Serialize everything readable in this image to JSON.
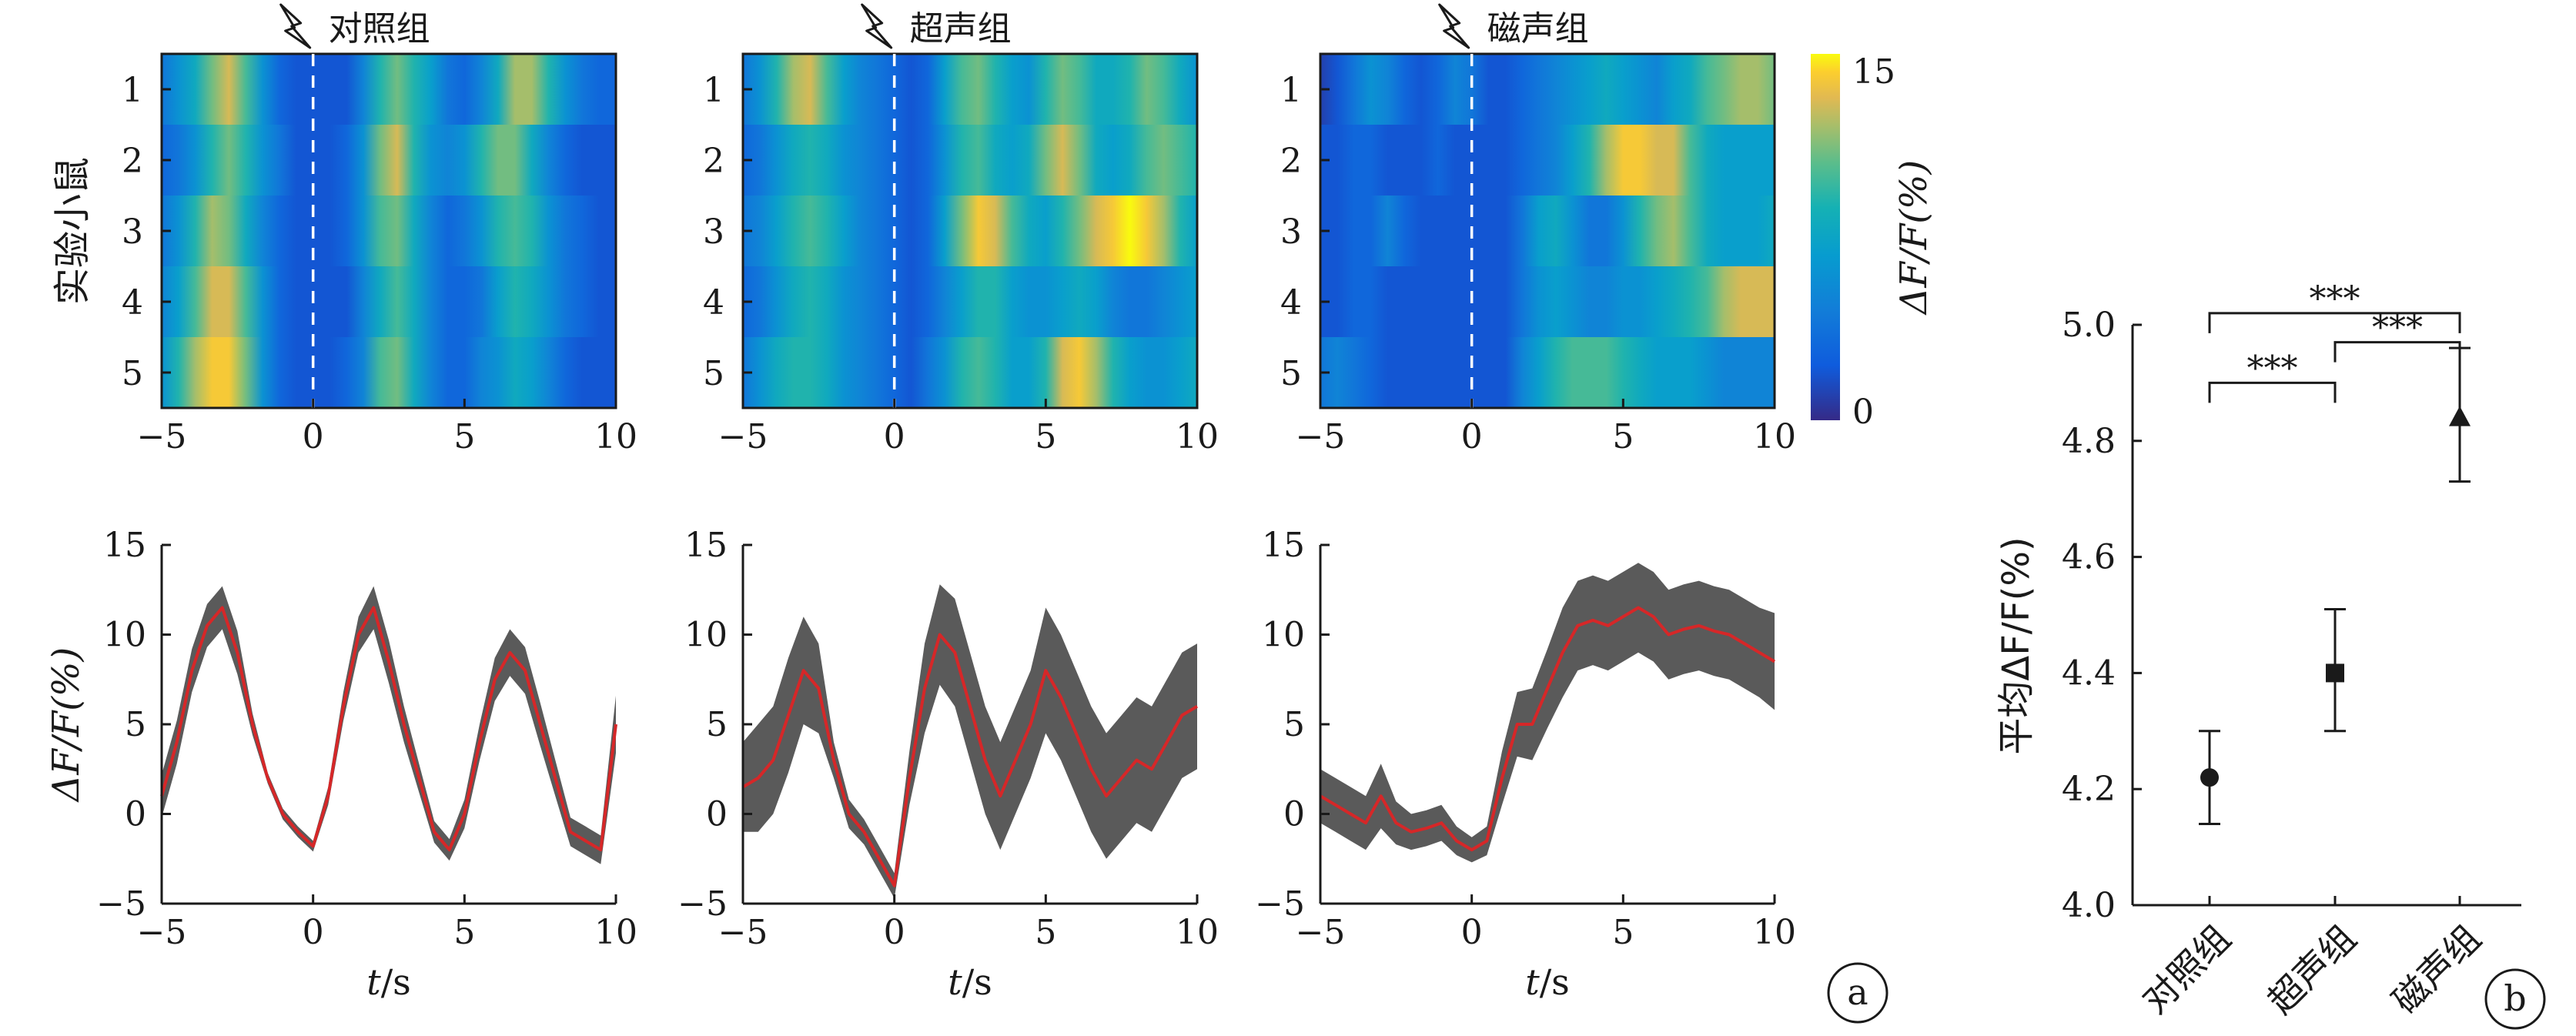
{
  "chart_data": [
    {
      "type": "heatmap",
      "panel": "a",
      "heatmaps": [
        {
          "title": "对照组",
          "rows": [
            [
              4,
              6,
              8,
              11,
              13,
              10,
              6,
              3,
              2,
              2,
              2,
              2,
              5,
              9,
              11,
              9,
              7,
              4,
              3,
              5,
              8,
              12,
              12,
              9,
              6,
              4,
              3,
              3
            ],
            [
              3,
              4,
              6,
              9,
              11,
              9,
              6,
              4,
              2,
              2,
              2,
              3,
              6,
              11,
              13,
              9,
              6,
              5,
              6,
              9,
              11,
              11,
              8,
              5,
              3,
              2,
              2,
              2
            ],
            [
              4,
              6,
              9,
              12,
              11,
              8,
              5,
              3,
              2,
              2,
              2,
              3,
              6,
              10,
              11,
              8,
              5,
              3,
              4,
              6,
              9,
              10,
              9,
              6,
              4,
              3,
              2,
              2
            ],
            [
              5,
              7,
              10,
              13,
              13,
              10,
              6,
              3,
              2,
              2,
              2,
              2,
              5,
              8,
              10,
              8,
              5,
              3,
              3,
              4,
              7,
              9,
              8,
              6,
              4,
              3,
              2,
              2
            ],
            [
              6,
              9,
              12,
              14,
              14,
              11,
              6,
              3,
              2,
              2,
              2,
              3,
              5,
              10,
              11,
              8,
              5,
              3,
              3,
              5,
              6,
              8,
              7,
              5,
              3,
              2,
              2,
              2
            ]
          ]
        },
        {
          "title": "超声组",
          "rows": [
            [
              4,
              6,
              9,
              12,
              13,
              10,
              7,
              5,
              4,
              3,
              2,
              3,
              7,
              10,
              11,
              9,
              7,
              6,
              9,
              11,
              10,
              8,
              8,
              9,
              11,
              10,
              8,
              6
            ],
            [
              3,
              4,
              6,
              8,
              9,
              8,
              6,
              5,
              4,
              3,
              2,
              3,
              6,
              9,
              10,
              8,
              7,
              8,
              11,
              13,
              11,
              8,
              7,
              8,
              10,
              11,
              10,
              9
            ],
            [
              4,
              5,
              7,
              9,
              10,
              9,
              7,
              5,
              4,
              3,
              2,
              3,
              7,
              11,
              14,
              13,
              10,
              8,
              7,
              9,
              11,
              13,
              14,
              15,
              14,
              12,
              9,
              7
            ],
            [
              3,
              4,
              6,
              8,
              9,
              8,
              6,
              5,
              4,
              3,
              2,
              3,
              5,
              7,
              9,
              9,
              7,
              6,
              6,
              7,
              8,
              7,
              5,
              4,
              4,
              5,
              6,
              7
            ],
            [
              4,
              6,
              8,
              9,
              9,
              8,
              6,
              5,
              4,
              3,
              2,
              4,
              6,
              9,
              10,
              9,
              7,
              7,
              9,
              13,
              14,
              12,
              9,
              7,
              6,
              6,
              7,
              8
            ]
          ]
        },
        {
          "title": "磁声组",
          "rows": [
            [
              1,
              2,
              4,
              6,
              5,
              3,
              2,
              3,
              5,
              4,
              2,
              2,
              3,
              4,
              5,
              6,
              7,
              8,
              7,
              6,
              5,
              7,
              8,
              10,
              11,
              12,
              12,
              11
            ],
            [
              2,
              2,
              3,
              3,
              2,
              2,
              2,
              3,
              2,
              2,
              2,
              2,
              3,
              4,
              5,
              7,
              9,
              12,
              14,
              14,
              13,
              13,
              10,
              8,
              7,
              7,
              7,
              7
            ],
            [
              2,
              2,
              3,
              3,
              5,
              3,
              2,
              2,
              2,
              2,
              2,
              2,
              4,
              7,
              8,
              6,
              4,
              4,
              6,
              9,
              11,
              12,
              10,
              8,
              7,
              7,
              7,
              8
            ],
            [
              2,
              2,
              3,
              3,
              2,
              2,
              2,
              2,
              2,
              2,
              2,
              2,
              4,
              6,
              7,
              6,
              5,
              5,
              6,
              6,
              7,
              8,
              9,
              10,
              12,
              13,
              13,
              13
            ],
            [
              4,
              5,
              4,
              3,
              2,
              2,
              2,
              2,
              2,
              2,
              2,
              2,
              5,
              7,
              9,
              10,
              10,
              10,
              9,
              8,
              7,
              7,
              7,
              6,
              5,
              5,
              5,
              5
            ]
          ]
        }
      ],
      "ylabel": "实验小鼠",
      "row_labels": [
        "1",
        "2",
        "3",
        "4",
        "5"
      ],
      "x_ticks": [
        "−5",
        "0",
        "5",
        "10"
      ],
      "xlim": [
        -5,
        10
      ],
      "colorbar": {
        "label": "ΔF/F(%)",
        "min_label": "0",
        "max_label": "15",
        "vmin": 0,
        "vmax": 15
      }
    },
    {
      "type": "line",
      "panel": "a",
      "x_start": -5,
      "x_step": 0.5,
      "x_ticks": [
        "−5",
        "0",
        "5",
        "10"
      ],
      "y_ticks": [
        "15",
        "10",
        "5",
        "0",
        "−5"
      ],
      "ylim": [
        -5,
        15
      ],
      "xlabel_italic": "t",
      "xlabel_unit": "/s",
      "ylabel": "ΔF/F(%)",
      "series": [
        {
          "mean": [
            1,
            4,
            8,
            10.5,
            11.5,
            9,
            5,
            2,
            0,
            -1,
            -1.8,
            1,
            6,
            10,
            11.5,
            8.5,
            5,
            2,
            -1,
            -2,
            0,
            4,
            7.5,
            9,
            8,
            5,
            2,
            -1,
            -1.5,
            -2,
            5
          ],
          "band": [
            1.2,
            1.2,
            1.2,
            1.2,
            1.2,
            1.2,
            0.6,
            0.3,
            0.3,
            0.3,
            0.3,
            0.5,
            0.8,
            1,
            1.2,
            1.2,
            1,
            0.8,
            0.6,
            0.6,
            0.8,
            1,
            1.2,
            1.3,
            1.3,
            1.2,
            1,
            0.8,
            0.8,
            0.8,
            1.6
          ]
        },
        {
          "mean": [
            1.5,
            2,
            3,
            5.5,
            8,
            7,
            3,
            0,
            -1,
            -2.5,
            -4,
            2,
            7,
            10,
            9,
            6,
            3,
            1,
            3,
            5,
            8,
            6.5,
            4.5,
            2.5,
            1,
            2,
            3,
            2.5,
            4,
            5.5,
            6
          ],
          "band": [
            2.5,
            3,
            3,
            3.2,
            3,
            2.5,
            1,
            0.8,
            0.7,
            0.7,
            0.7,
            1.5,
            2.5,
            2.8,
            3,
            3,
            3,
            3,
            3,
            3,
            3.5,
            3.5,
            3.5,
            3.5,
            3.5,
            3.5,
            3.5,
            3.5,
            3.5,
            3.5,
            3.5
          ]
        },
        {
          "mean": [
            1,
            0.5,
            0,
            -0.5,
            1,
            -0.5,
            -1,
            -0.8,
            -0.5,
            -1.5,
            -2,
            -1.5,
            2,
            5,
            5,
            7,
            9,
            10.5,
            10.8,
            10.5,
            11,
            11.5,
            11,
            10,
            10.3,
            10.5,
            10.2,
            10,
            9.5,
            9,
            8.5
          ],
          "band": [
            1.5,
            1.5,
            1.5,
            1.5,
            1.8,
            1.2,
            1,
            1,
            1,
            0.8,
            0.7,
            0.8,
            1.5,
            1.8,
            2,
            2.2,
            2.5,
            2.5,
            2.5,
            2.5,
            2.5,
            2.5,
            2.5,
            2.5,
            2.5,
            2.5,
            2.5,
            2.5,
            2.5,
            2.5,
            2.7
          ]
        }
      ],
      "colors": {
        "mean": "#d62728",
        "band": "#5a5a5a"
      }
    },
    {
      "type": "scatter",
      "panel": "b",
      "categories": [
        "对照组",
        "超声组",
        "磁声组"
      ],
      "values": [
        4.22,
        4.4,
        4.84
      ],
      "errors": [
        [
          4.14,
          4.3
        ],
        [
          4.3,
          4.51
        ],
        [
          4.73,
          4.96
        ]
      ],
      "markers": [
        "circle",
        "square",
        "triangle"
      ],
      "ylim": [
        4.0,
        5.0
      ],
      "y_ticks": [
        "4.0",
        "4.2",
        "4.4",
        "4.6",
        "4.8",
        "5.0"
      ],
      "ylabel": "平均ΔF/F(%)",
      "significance": [
        {
          "from": 0,
          "to": 1,
          "label": "***"
        },
        {
          "from": 1,
          "to": 2,
          "label": "***"
        },
        {
          "from": 0,
          "to": 2,
          "label": "***"
        }
      ]
    }
  ],
  "panel_labels": {
    "a": "a",
    "b": "b"
  }
}
